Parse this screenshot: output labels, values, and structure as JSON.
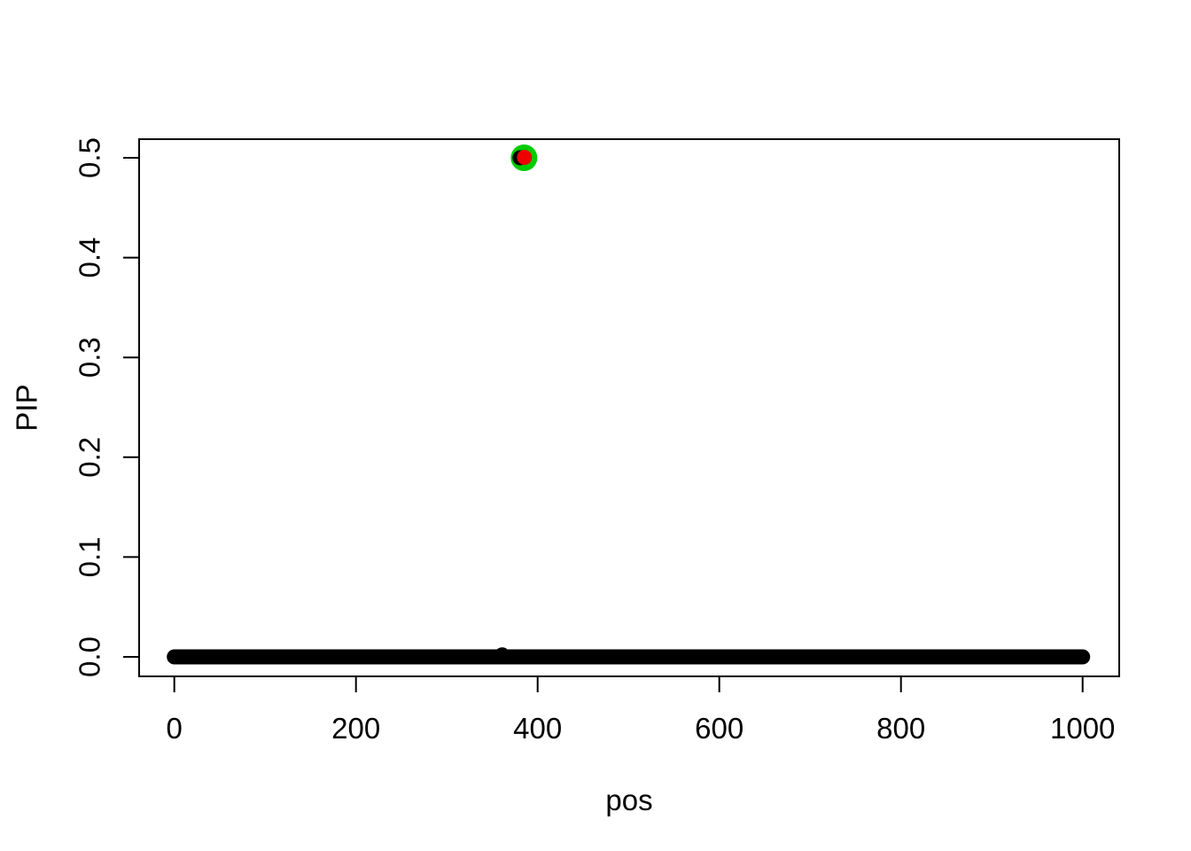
{
  "figure": {
    "background": "#ffffff",
    "description": "R base-graphics scatter plot of posterior inclusion probability (PIP) versus position"
  },
  "chart_data": {
    "type": "scatter",
    "title": "",
    "xlabel": "pos",
    "ylabel": "PIP",
    "x_axis": {
      "ticks": [
        0,
        200,
        400,
        600,
        800,
        1000
      ],
      "tick_labels": [
        "0",
        "200",
        "400",
        "600",
        "800",
        "1000"
      ],
      "range": [
        0,
        1000
      ],
      "range_shown": [
        -39,
        1040
      ]
    },
    "y_axis": {
      "tick_values": [
        0,
        0.1,
        0.2,
        0.3,
        0.4,
        0.5
      ],
      "tick_labels": [
        "0.0",
        "0.1",
        "0.2",
        "0.3",
        "0.4",
        "0.5"
      ],
      "range": [
        0,
        0.5
      ],
      "range_shown": [
        -0.02,
        0.52
      ],
      "labels_rotated_degrees": -90
    },
    "grid": "off",
    "legend": "none",
    "point_color": "#000000",
    "series": [
      {
        "name": "pip-baseline-band",
        "style": "dense-overlapping-filled-circles",
        "color": "#000000",
        "x_start": 0,
        "x_end": 1000,
        "n_points": 1001,
        "y": 0,
        "note": "~1000 SNPs with PIP approximately 0 forming a solid black band along the x-axis"
      },
      {
        "name": "slightly-elevated-point",
        "color": "#000000",
        "points": [
          {
            "x": 361,
            "y": 0.002
          }
        ],
        "note": "single black point barely poking above the baseline band"
      }
    ],
    "highlight": {
      "pos": 385,
      "pip": 0.5,
      "halo_color": "#00CC00",
      "dot_color": "#EE0000",
      "underlying_point_color": "#000000",
      "note": "highlighted SNP at PIP 0.5: large green halo, red dot on top, black scatter point peeking out on the left"
    }
  }
}
